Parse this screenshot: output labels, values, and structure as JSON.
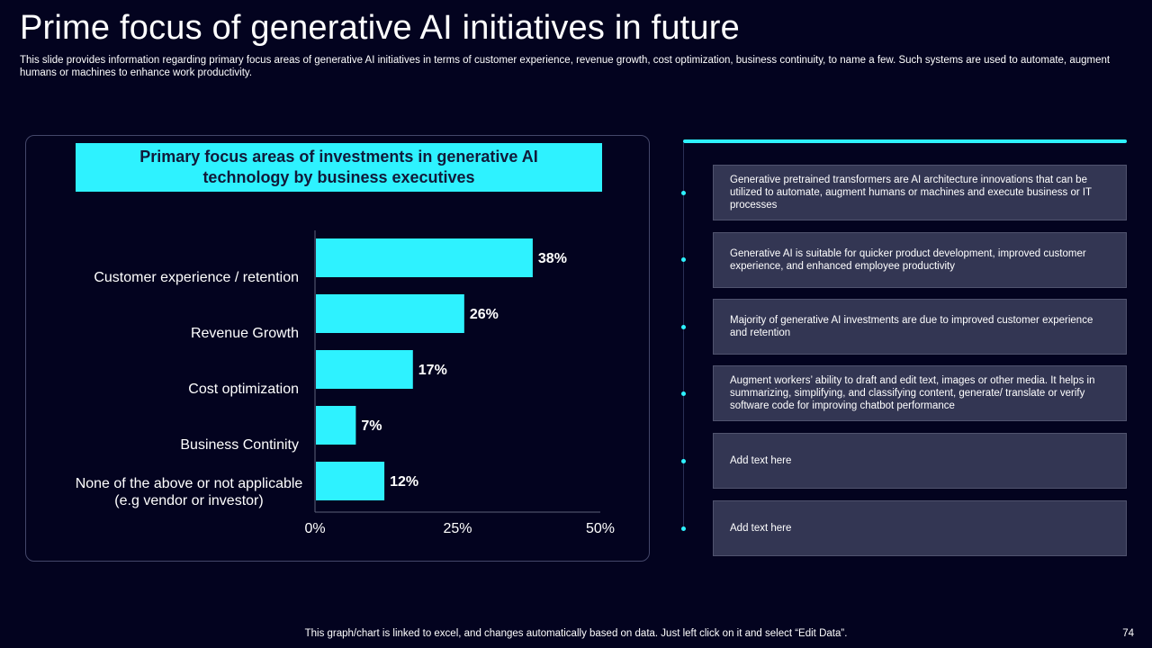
{
  "slide": {
    "title": "Prime focus of generative AI initiatives in future",
    "subtitle": "This slide provides information regarding primary focus areas of generative AI initiatives in terms of customer experience, revenue growth, cost optimization, business continuity, to name a few.  Such systems are used to automate, augment humans or machines to enhance work productivity.",
    "footer": "This graph/chart is linked to excel,  and changes automatically based on data. Just left click on it and select “Edit Data”.",
    "page_number": "74"
  },
  "chart_data": {
    "type": "bar",
    "orientation": "horizontal",
    "title": "Primary focus areas of investments in generative AI technology by business executives",
    "categories": [
      "Customer experience / retention",
      "Revenue  Growth",
      "Cost optimization",
      "Business Continity",
      "None of the above or not applicable (e.g vendor or investor)"
    ],
    "values": [
      38,
      26,
      17,
      7,
      12
    ],
    "value_labels": [
      "38%",
      "26%",
      "17%",
      "7%",
      "12%"
    ],
    "xlim": [
      0,
      50
    ],
    "x_ticks": [
      "0%",
      "25%",
      "50%"
    ],
    "x_tick_values": [
      0,
      25,
      50
    ],
    "bar_color": "#2ef2ff",
    "grid": false,
    "legend": "none"
  },
  "notes": [
    "Generative pretrained transformers are AI architecture innovations that can be utilized to automate, augment humans or machines and execute business or IT processes",
    "Generative AI  is suitable for quicker product development, improved customer experience, and enhanced employee productivity",
    "Majority of generative AI investments are due to improved customer experience and retention",
    "Augment workers’ ability to draft and edit text,  images or other media. It helps in summarizing, simplifying, and classifying content, generate/ translate or verify software code for improving chatbot performance",
    "Add text here",
    "Add text here"
  ],
  "colors": {
    "background": "#03031f",
    "accent": "#2ef2ff",
    "box": "#333653"
  }
}
